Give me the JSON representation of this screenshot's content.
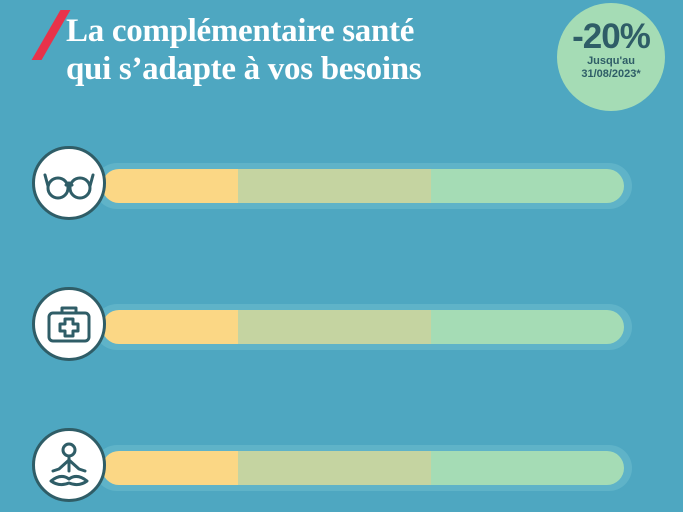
{
  "header": {
    "title_line1": "La complémentaire santé",
    "title_line2": "qui s’adapte à vos besoins"
  },
  "badge": {
    "discount": "-20%",
    "line1": "Jusqu'au",
    "line2": "31/08/2023*"
  },
  "rows": [
    {
      "icon": "glasses-icon"
    },
    {
      "icon": "medical-kit-icon"
    },
    {
      "icon": "meditation-icon"
    }
  ],
  "colors": {
    "background": "#4ea7c1",
    "accent_red": "#e8324a",
    "level_1": "#fbd785",
    "level_2": "#c5d4a1",
    "level_3": "#a5dcb5",
    "icon_stroke": "#2f5d67"
  }
}
